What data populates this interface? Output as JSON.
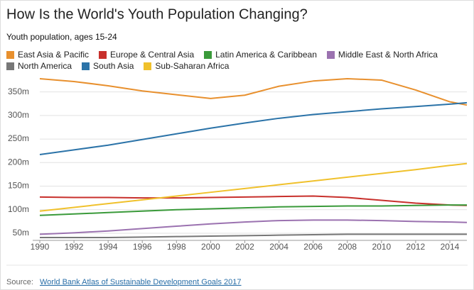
{
  "chart_data": {
    "type": "line",
    "title": "How Is the World's Youth Population Changing?",
    "subtitle": "Youth population, ages 15-24",
    "x": [
      1990,
      1992,
      1994,
      1996,
      1998,
      2000,
      2002,
      2004,
      2006,
      2008,
      2010,
      2012,
      2014,
      2015
    ],
    "series": [
      {
        "name": "East Asia & Pacific",
        "color": "#e8902e",
        "values": [
          378,
          372,
          363,
          352,
          344,
          336,
          343,
          362,
          373,
          378,
          375,
          354,
          329,
          322
        ]
      },
      {
        "name": "Europe & Central Asia",
        "color": "#c8302c",
        "values": [
          127,
          126,
          126,
          125,
          125,
          126,
          127,
          128,
          129,
          126,
          120,
          114,
          110,
          109
        ]
      },
      {
        "name": "Latin America & Caribbean",
        "color": "#3a9a3a",
        "values": [
          88,
          91,
          94,
          97,
          100,
          102,
          104,
          106,
          107,
          108,
          108,
          109,
          110,
          110
        ]
      },
      {
        "name": "Middle East & North Africa",
        "color": "#9b72b0",
        "values": [
          48,
          51,
          55,
          60,
          65,
          70,
          74,
          77,
          78,
          78,
          77,
          75,
          74,
          73
        ]
      },
      {
        "name": "North America",
        "color": "#777777",
        "values": [
          41,
          41,
          41,
          42,
          43,
          44,
          45,
          46,
          47,
          48,
          48,
          48,
          48,
          48
        ]
      },
      {
        "name": "South Asia",
        "color": "#2b73a8",
        "values": [
          217,
          227,
          237,
          249,
          261,
          273,
          284,
          294,
          302,
          308,
          314,
          319,
          324,
          327
        ]
      },
      {
        "name": "Sub-Saharan Africa",
        "color": "#f0c12c",
        "values": [
          97,
          105,
          113,
          121,
          129,
          137,
          145,
          153,
          161,
          169,
          177,
          185,
          194,
          198
        ]
      }
    ],
    "xlim": [
      1990,
      2015
    ],
    "xticks": [
      1990,
      1992,
      1994,
      1996,
      1998,
      2000,
      2002,
      2004,
      2006,
      2008,
      2010,
      2012,
      2014
    ],
    "ylim": [
      35,
      390
    ],
    "yticks": [
      {
        "value": 50,
        "label": "50m"
      },
      {
        "value": 100,
        "label": "100m"
      },
      {
        "value": 150,
        "label": "150m"
      },
      {
        "value": 200,
        "label": "200m"
      },
      {
        "value": 250,
        "label": "250m"
      },
      {
        "value": 300,
        "label": "300m"
      },
      {
        "value": 350,
        "label": "350m"
      }
    ],
    "grid": true,
    "source_label": "Source:",
    "source_link": "World Bank Atlas of Sustainable Development Goals 2017"
  }
}
